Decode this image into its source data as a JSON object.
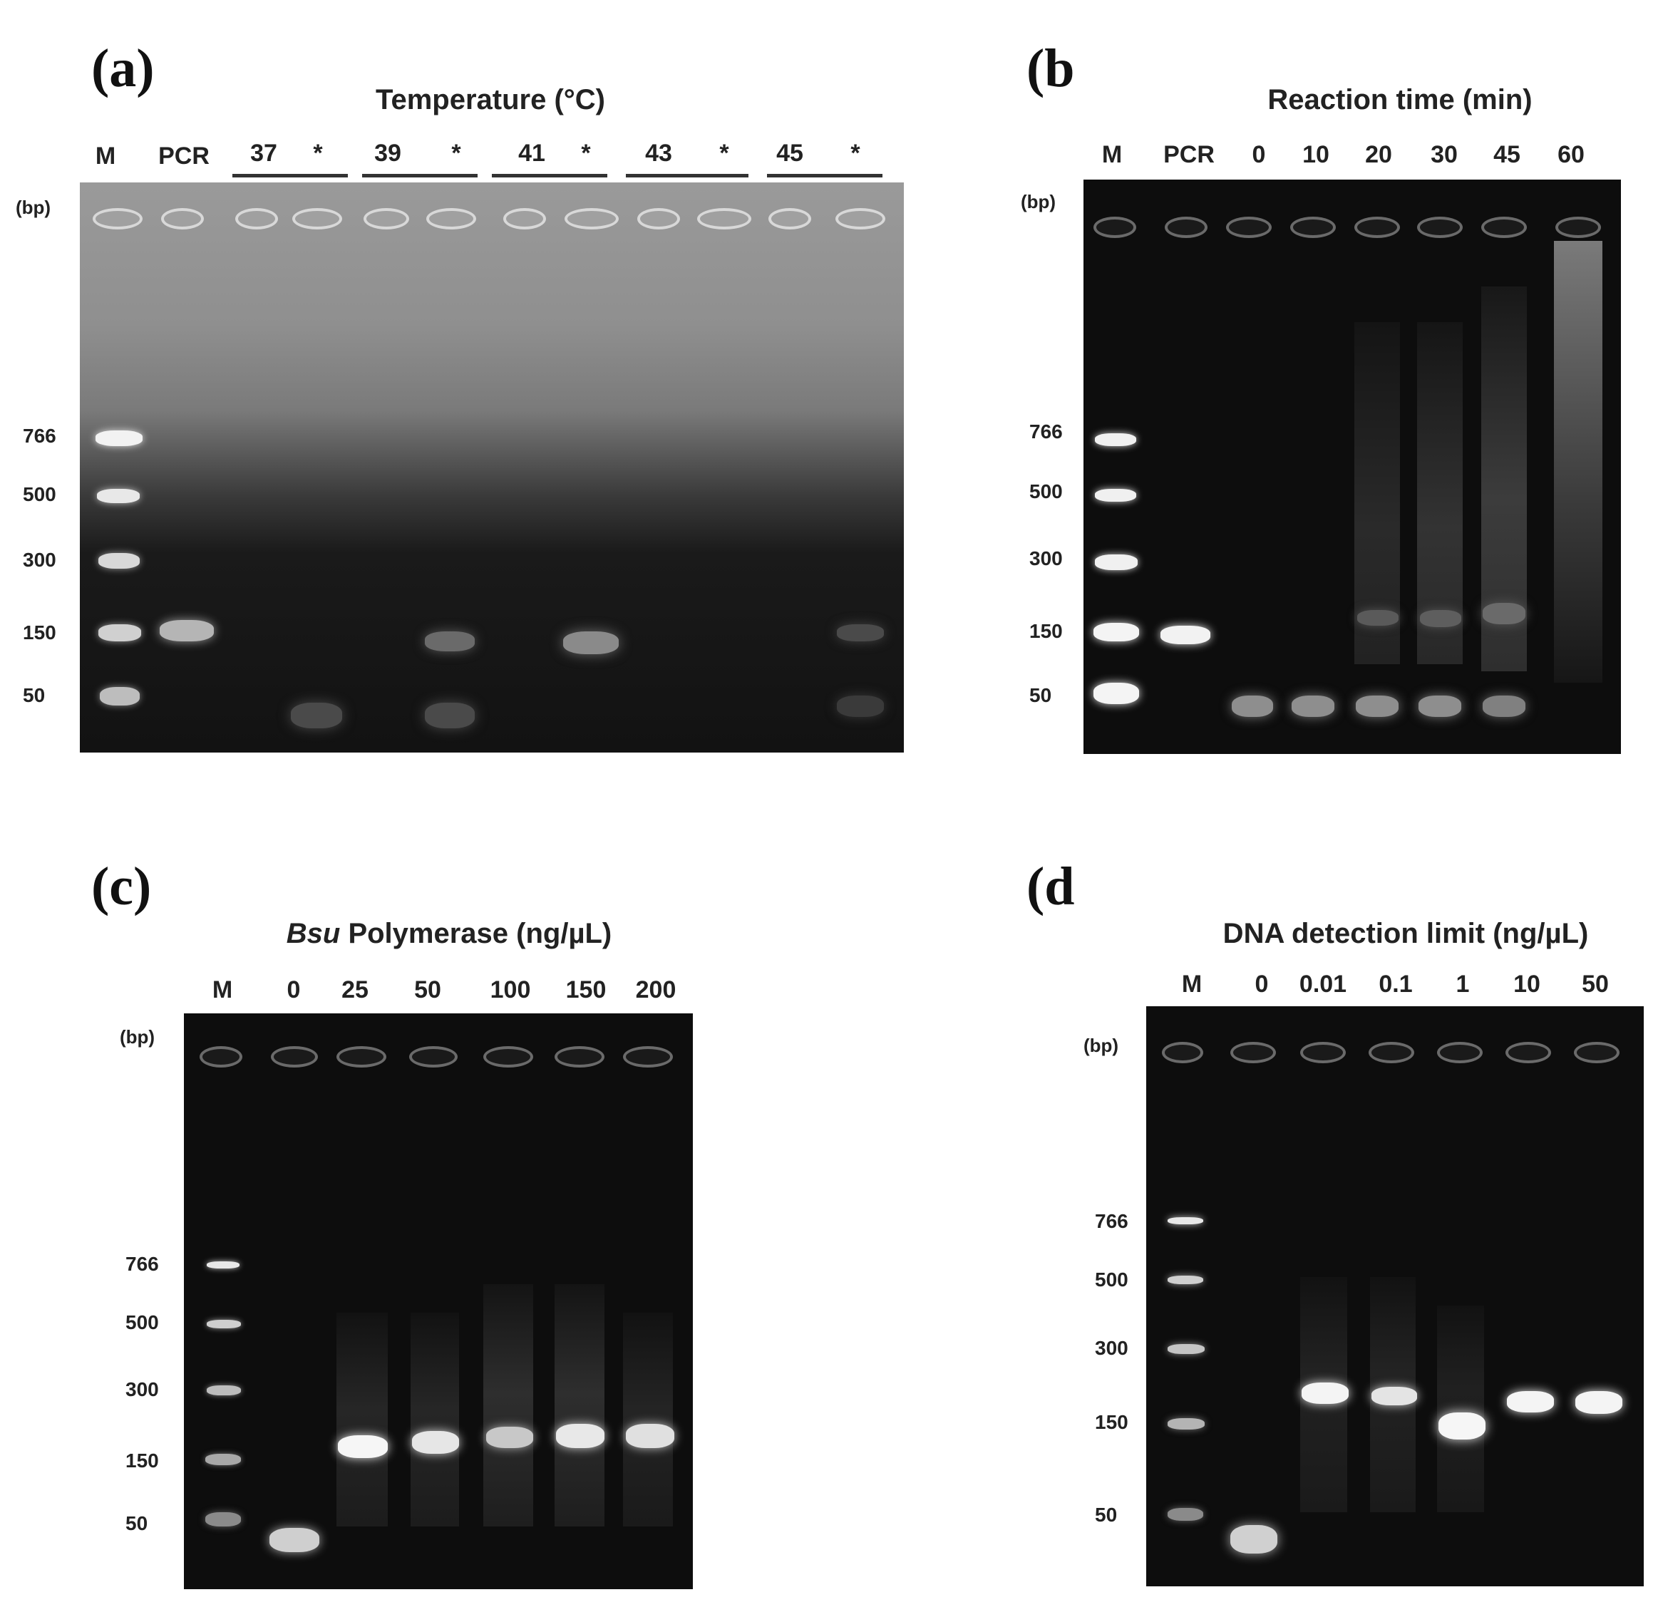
{
  "panel_a": {
    "label": "(a)",
    "title": "Temperature (°C)",
    "lanes": [
      "M",
      "PCR",
      "37",
      "*",
      "39",
      "*",
      "41",
      "*",
      "43",
      "*",
      "45",
      "*"
    ],
    "unit": "(bp)",
    "sizes": [
      "766",
      "500",
      "300",
      "150",
      "50"
    ]
  },
  "panel_b": {
    "label": "(b",
    "title": "Reaction time (min)",
    "lanes": [
      "M",
      "PCR",
      "0",
      "10",
      "20",
      "30",
      "45",
      "60"
    ],
    "unit": "(bp)",
    "sizes": [
      "766",
      "500",
      "300",
      "150",
      "50"
    ]
  },
  "panel_c": {
    "label": "(c)",
    "title_italic": "Bsu",
    "title_rest": " Polymerase (ng/µL)",
    "lanes": [
      "M",
      "0",
      "25",
      "50",
      "100",
      "150",
      "200"
    ],
    "unit": "(bp)",
    "sizes": [
      "766",
      "500",
      "300",
      "150",
      "50"
    ]
  },
  "panel_d": {
    "label": "(d",
    "title": "DNA detection limit (ng/µL)",
    "lanes": [
      "M",
      "0",
      "0.01",
      "0.1",
      "1",
      "10",
      "50"
    ],
    "unit": "(bp)",
    "sizes": [
      "766",
      "500",
      "300",
      "150",
      "50"
    ]
  }
}
